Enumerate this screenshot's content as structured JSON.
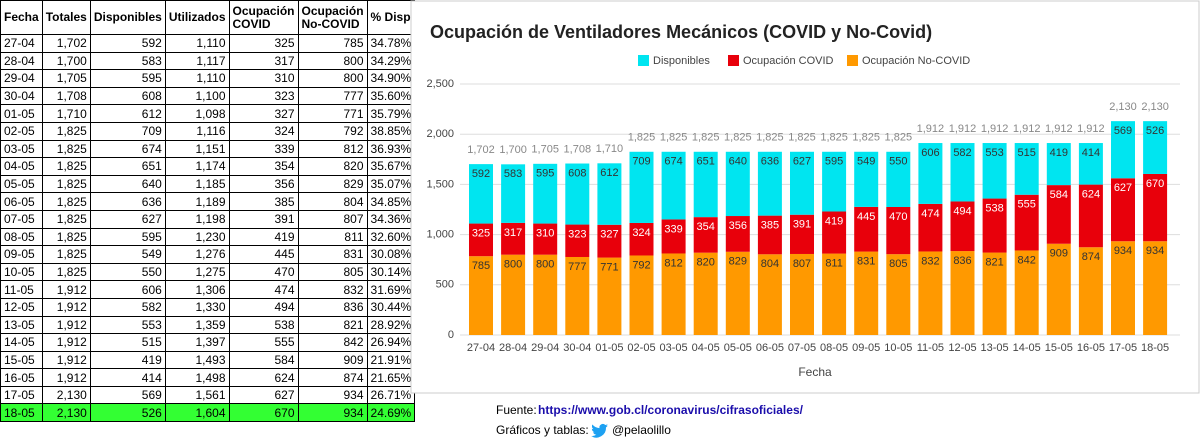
{
  "table": {
    "columns": [
      "Fecha",
      "Totales",
      "Disponibles",
      "Utilizados",
      "Ocupación COVID",
      "Ocupación No-COVID",
      "% Disp"
    ],
    "rows": [
      [
        "27-04",
        "1,702",
        "592",
        "1,110",
        "325",
        "785",
        "34.78%"
      ],
      [
        "28-04",
        "1,700",
        "583",
        "1,117",
        "317",
        "800",
        "34.29%"
      ],
      [
        "29-04",
        "1,705",
        "595",
        "1,110",
        "310",
        "800",
        "34.90%"
      ],
      [
        "30-04",
        "1,708",
        "608",
        "1,100",
        "323",
        "777",
        "35.60%"
      ],
      [
        "01-05",
        "1,710",
        "612",
        "1,098",
        "327",
        "771",
        "35.79%"
      ],
      [
        "02-05",
        "1,825",
        "709",
        "1,116",
        "324",
        "792",
        "38.85%"
      ],
      [
        "03-05",
        "1,825",
        "674",
        "1,151",
        "339",
        "812",
        "36.93%"
      ],
      [
        "04-05",
        "1,825",
        "651",
        "1,174",
        "354",
        "820",
        "35.67%"
      ],
      [
        "05-05",
        "1,825",
        "640",
        "1,185",
        "356",
        "829",
        "35.07%"
      ],
      [
        "06-05",
        "1,825",
        "636",
        "1,189",
        "385",
        "804",
        "34.85%"
      ],
      [
        "07-05",
        "1,825",
        "627",
        "1,198",
        "391",
        "807",
        "34.36%"
      ],
      [
        "08-05",
        "1,825",
        "595",
        "1,230",
        "419",
        "811",
        "32.60%"
      ],
      [
        "09-05",
        "1,825",
        "549",
        "1,276",
        "445",
        "831",
        "30.08%"
      ],
      [
        "10-05",
        "1,825",
        "550",
        "1,275",
        "470",
        "805",
        "30.14%"
      ],
      [
        "11-05",
        "1,912",
        "606",
        "1,306",
        "474",
        "832",
        "31.69%"
      ],
      [
        "12-05",
        "1,912",
        "582",
        "1,330",
        "494",
        "836",
        "30.44%"
      ],
      [
        "13-05",
        "1,912",
        "553",
        "1,359",
        "538",
        "821",
        "28.92%"
      ],
      [
        "14-05",
        "1,912",
        "515",
        "1,397",
        "555",
        "842",
        "26.94%"
      ],
      [
        "15-05",
        "1,912",
        "419",
        "1,493",
        "584",
        "909",
        "21.91%"
      ],
      [
        "16-05",
        "1,912",
        "414",
        "1,498",
        "624",
        "874",
        "21.65%"
      ],
      [
        "17-05",
        "2,130",
        "569",
        "1,561",
        "627",
        "934",
        "26.71%"
      ],
      [
        "18-05",
        "2,130",
        "526",
        "1,604",
        "670",
        "934",
        "24.69%"
      ]
    ]
  },
  "chart_data": {
    "type": "stacked_bar",
    "title": "Ocupación de Ventiladores Mecánicos (COVID y No-Covid)",
    "x_label": "Fecha",
    "legend": "top",
    "categories": [
      "27-04",
      "28-04",
      "29-04",
      "30-04",
      "01-05",
      "02-05",
      "03-05",
      "04-05",
      "05-05",
      "06-05",
      "07-05",
      "08-05",
      "09-05",
      "10-05",
      "11-05",
      "12-05",
      "13-05",
      "14-05",
      "15-05",
      "16-05",
      "17-05",
      "18-05"
    ],
    "series": [
      {
        "name": "Disponibles",
        "color": "#00e5f0",
        "values": [
          592,
          583,
          595,
          608,
          612,
          709,
          674,
          651,
          640,
          636,
          627,
          595,
          549,
          550,
          606,
          582,
          553,
          515,
          419,
          414,
          569,
          526
        ]
      },
      {
        "name": "Ocupación COVID",
        "color": "#e8000b",
        "values": [
          325,
          317,
          310,
          323,
          327,
          324,
          339,
          354,
          356,
          385,
          391,
          419,
          445,
          470,
          474,
          494,
          538,
          555,
          584,
          624,
          627,
          670
        ]
      },
      {
        "name": "Ocupación No-COVID",
        "color": "#ff9900",
        "values": [
          785,
          800,
          800,
          777,
          771,
          792,
          812,
          820,
          829,
          804,
          807,
          811,
          831,
          805,
          832,
          836,
          821,
          842,
          909,
          874,
          934,
          934
        ]
      }
    ],
    "totals": [
      1702,
      1700,
      1705,
      1708,
      1710,
      1825,
      1825,
      1825,
      1825,
      1825,
      1825,
      1825,
      1825,
      1825,
      1912,
      1912,
      1912,
      1912,
      1912,
      1912,
      2130,
      2130
    ],
    "total_labels": [
      "1,702",
      "1,700",
      "1,705",
      "1,708",
      "1,710",
      "1,825",
      "1,825",
      "1,825",
      "1,825",
      "1,825",
      "1,825",
      "1,825",
      "1,825",
      "1,825",
      "1,912",
      "1,912",
      "1,912",
      "1,912",
      "1,912",
      "1,912",
      "2,130",
      "2,130"
    ],
    "ylim": [
      0,
      2500
    ],
    "yticks": [
      0,
      500,
      {
        "value": 1000,
        "label": "1,000"
      },
      {
        "value": 1500,
        "label": "1,500"
      },
      {
        "value": 2000,
        "label": "2,000"
      },
      {
        "value": 2500,
        "label": "2,500"
      }
    ],
    "grid": true
  },
  "footer": {
    "source_label": "Fuente:",
    "source_url": "https://www.gob.cl/coronavirus/cifrasoficiales/",
    "credits_label": "Gráficos y tablas:",
    "handle": "@pelaolillo"
  }
}
